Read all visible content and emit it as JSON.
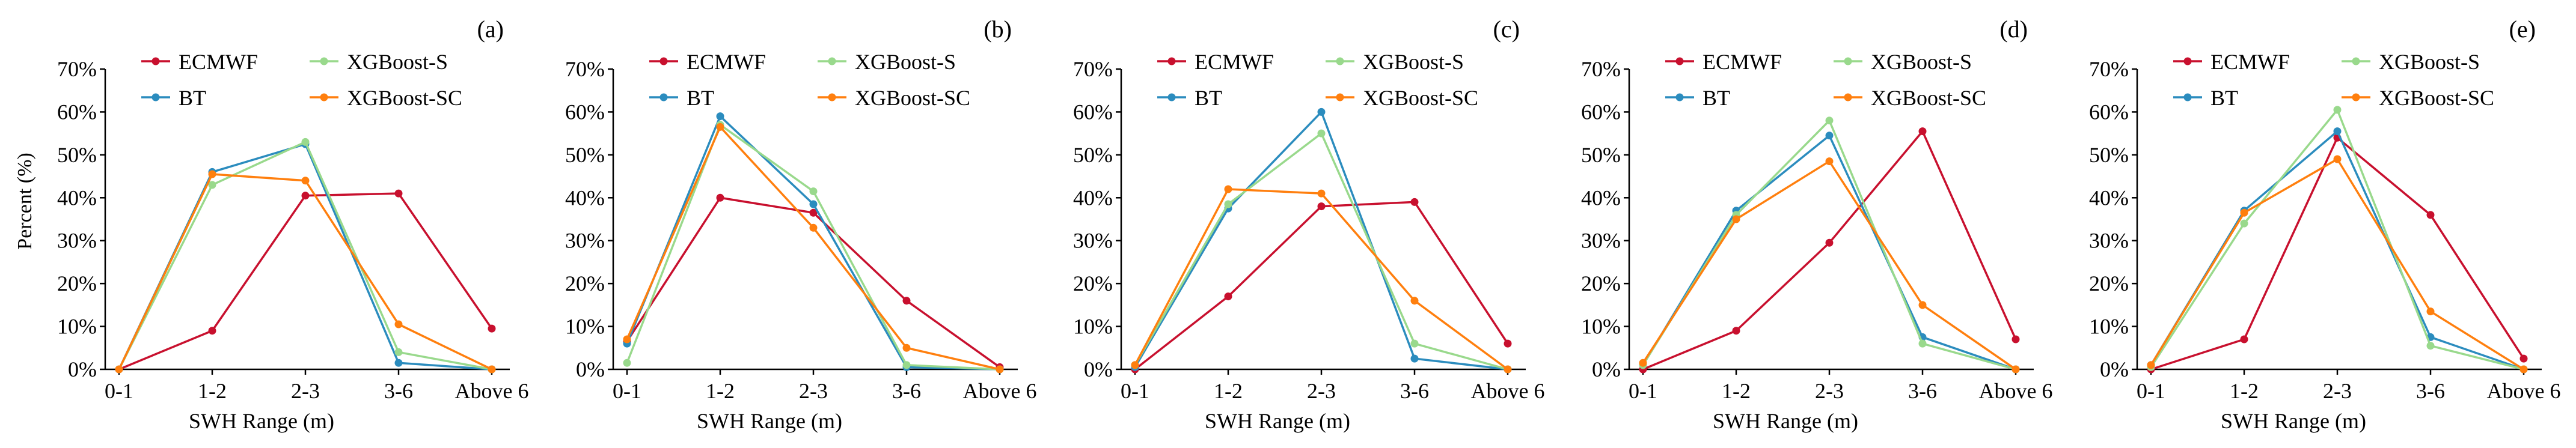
{
  "figure": {
    "ylabel": "Percent (%)",
    "xlabel": "SWH Range (m)"
  },
  "legend_labels": {
    "ecmwf": "ECMWF",
    "bt": "BT",
    "xgb_s": "XGBoost-S",
    "xgb_sc": "XGBoost-SC"
  },
  "colors": {
    "ecmwf": "#c8102e",
    "bt": "#2b8cbe",
    "xgb_s": "#99d98c",
    "xgb_sc": "#ff7f0e"
  },
  "chart_data": [
    {
      "type": "line",
      "panel_label": "(a)",
      "categories": [
        "0-1",
        "1-2",
        "2-3",
        "3-6",
        "Above 6"
      ],
      "ylim": [
        0,
        70
      ],
      "yticks": [
        "0%",
        "10%",
        "20%",
        "30%",
        "40%",
        "50%",
        "60%",
        "70%"
      ],
      "xlabel": "SWH Range (m)",
      "ylabel": "Percent (%)",
      "series": [
        {
          "key": "ecmwf",
          "name": "ECMWF",
          "values": [
            0,
            9,
            40.5,
            41,
            9.5
          ]
        },
        {
          "key": "bt",
          "name": "BT",
          "values": [
            0,
            46,
            52.5,
            1.5,
            0
          ]
        },
        {
          "key": "xgb_s",
          "name": "XGBoost-S",
          "values": [
            0,
            43,
            53,
            4,
            0
          ]
        },
        {
          "key": "xgb_sc",
          "name": "XGBoost-SC",
          "values": [
            0,
            45.5,
            44,
            10.5,
            0
          ]
        }
      ]
    },
    {
      "type": "line",
      "panel_label": "(b)",
      "categories": [
        "0-1",
        "1-2",
        "2-3",
        "3-6",
        "Above 6"
      ],
      "ylim": [
        0,
        70
      ],
      "yticks": [
        "0%",
        "10%",
        "20%",
        "30%",
        "40%",
        "50%",
        "60%",
        "70%"
      ],
      "xlabel": "SWH Range (m)",
      "ylabel": "",
      "series": [
        {
          "key": "ecmwf",
          "name": "ECMWF",
          "values": [
            6.5,
            40,
            36.5,
            16,
            0.5
          ]
        },
        {
          "key": "bt",
          "name": "BT",
          "values": [
            6,
            59,
            38.5,
            0.5,
            0
          ]
        },
        {
          "key": "xgb_s",
          "name": "XGBoost-S",
          "values": [
            1.5,
            57,
            41.5,
            1,
            0
          ]
        },
        {
          "key": "xgb_sc",
          "name": "XGBoost-SC",
          "values": [
            7,
            56.5,
            33,
            5,
            0
          ]
        }
      ]
    },
    {
      "type": "line",
      "panel_label": "(c)",
      "categories": [
        "0-1",
        "1-2",
        "2-3",
        "3-6",
        "Above 6"
      ],
      "ylim": [
        0,
        70
      ],
      "yticks": [
        "0%",
        "10%",
        "20%",
        "30%",
        "40%",
        "50%",
        "60%",
        "70%"
      ],
      "xlabel": "SWH Range (m)",
      "ylabel": "",
      "series": [
        {
          "key": "ecmwf",
          "name": "ECMWF",
          "values": [
            0,
            17,
            38,
            39,
            6
          ]
        },
        {
          "key": "bt",
          "name": "BT",
          "values": [
            0.5,
            37.5,
            60,
            2.5,
            0
          ]
        },
        {
          "key": "xgb_s",
          "name": "XGBoost-S",
          "values": [
            1,
            38.5,
            55,
            6,
            0
          ]
        },
        {
          "key": "xgb_sc",
          "name": "XGBoost-SC",
          "values": [
            1,
            42,
            41,
            16,
            0
          ]
        }
      ]
    },
    {
      "type": "line",
      "panel_label": "(d)",
      "categories": [
        "0-1",
        "1-2",
        "2-3",
        "3-6",
        "Above 6"
      ],
      "ylim": [
        0,
        70
      ],
      "yticks": [
        "0%",
        "10%",
        "20%",
        "30%",
        "40%",
        "50%",
        "60%",
        "70%"
      ],
      "xlabel": "SWH Range (m)",
      "ylabel": "",
      "series": [
        {
          "key": "ecmwf",
          "name": "ECMWF",
          "values": [
            0,
            9,
            29.5,
            55.5,
            7
          ]
        },
        {
          "key": "bt",
          "name": "BT",
          "values": [
            1,
            37,
            54.5,
            7.5,
            0
          ]
        },
        {
          "key": "xgb_s",
          "name": "XGBoost-S",
          "values": [
            1,
            36,
            58,
            6,
            0
          ]
        },
        {
          "key": "xgb_sc",
          "name": "XGBoost-SC",
          "values": [
            1.5,
            35,
            48.5,
            15,
            0
          ]
        }
      ]
    },
    {
      "type": "line",
      "panel_label": "(e)",
      "categories": [
        "0-1",
        "1-2",
        "2-3",
        "3-6",
        "Above 6"
      ],
      "ylim": [
        0,
        70
      ],
      "yticks": [
        "0%",
        "10%",
        "20%",
        "30%",
        "40%",
        "50%",
        "60%",
        "70%"
      ],
      "xlabel": "SWH Range (m)",
      "ylabel": "",
      "series": [
        {
          "key": "ecmwf",
          "name": "ECMWF",
          "values": [
            0,
            7,
            54,
            36,
            2.5
          ]
        },
        {
          "key": "bt",
          "name": "BT",
          "values": [
            1,
            37,
            55.5,
            7.5,
            0
          ]
        },
        {
          "key": "xgb_s",
          "name": "XGBoost-S",
          "values": [
            0.5,
            34,
            60.5,
            5.5,
            0
          ]
        },
        {
          "key": "xgb_sc",
          "name": "XGBoost-SC",
          "values": [
            1,
            36.5,
            49,
            13.5,
            0
          ]
        }
      ]
    }
  ]
}
